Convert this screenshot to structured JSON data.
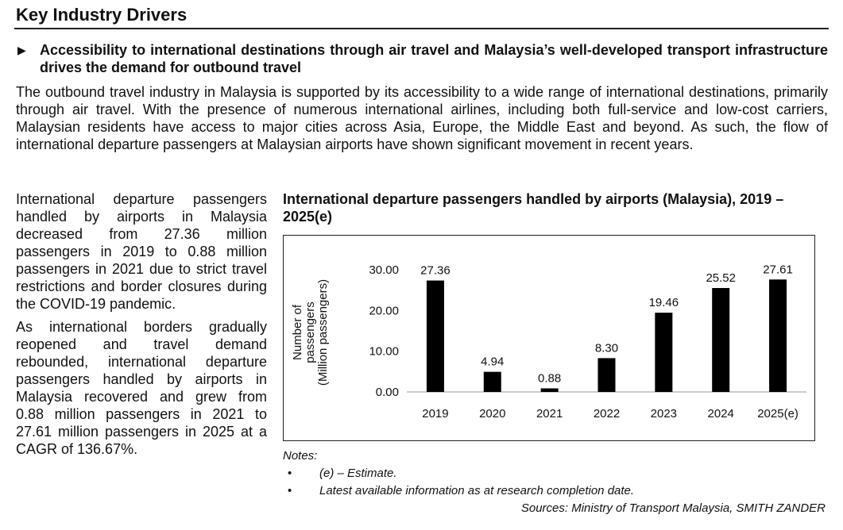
{
  "section_title": "Key Industry Drivers",
  "bullet_heading": "Accessibility to international destinations through air travel and Malaysia’s well-developed transport infrastructure drives the demand for outbound travel",
  "intro_paragraph": "The outbound travel industry in Malaysia is supported by its accessibility to a wide range of international destinations, primarily through air travel. With the presence of numerous international airlines, including both full-service and low-cost carriers, Malaysian residents have access to major cities across Asia, Europe, the Middle East and beyond. As such, the flow of international departure passengers at Malaysian airports have shown significant movement in recent years.",
  "left_paragraphs": [
    "International departure passengers handled by airports in Malaysia decreased from 27.36 million passengers in 2019 to 0.88 million passengers in 2021 due to strict travel restrictions and border closures during the COVID-19 pandemic.",
    "As international borders gradually reopened and travel demand rebounded, international departure passengers handled by airports in Malaysia recovered and grew from 0.88 million passengers in 2021 to 27.61 million passengers in 2025 at a CAGR of 136.67%."
  ],
  "chart_data": {
    "type": "bar",
    "title": "International departure passengers handled by airports (Malaysia), 2019 – 2025(e)",
    "categories": [
      "2019",
      "2020",
      "2021",
      "2022",
      "2023",
      "2024",
      "2025(e)"
    ],
    "values": [
      27.36,
      4.94,
      0.88,
      8.3,
      19.46,
      25.52,
      27.61
    ],
    "value_labels": [
      "27.36",
      "4.94",
      "0.88",
      "8.30",
      "19.46",
      "25.52",
      "27.61"
    ],
    "ylabel": "Number of passengers (Million passengers)",
    "ylabel_lines": [
      "Number of",
      "passengers",
      "(Million passengers)"
    ],
    "yticks": [
      0,
      10,
      20,
      30
    ],
    "ytick_labels": [
      "0.00",
      "10.00",
      "20.00",
      "30.00"
    ],
    "ylim": [
      0,
      30
    ],
    "bar_color": "#000000",
    "grid": false,
    "legend": "none"
  },
  "notes": {
    "label": "Notes:",
    "bullet": "•",
    "items": [
      "(e) – Estimate.",
      "Latest available information as at research completion date."
    ]
  },
  "sources": "Sources: Ministry of Transport Malaysia, SMITH ZANDER"
}
